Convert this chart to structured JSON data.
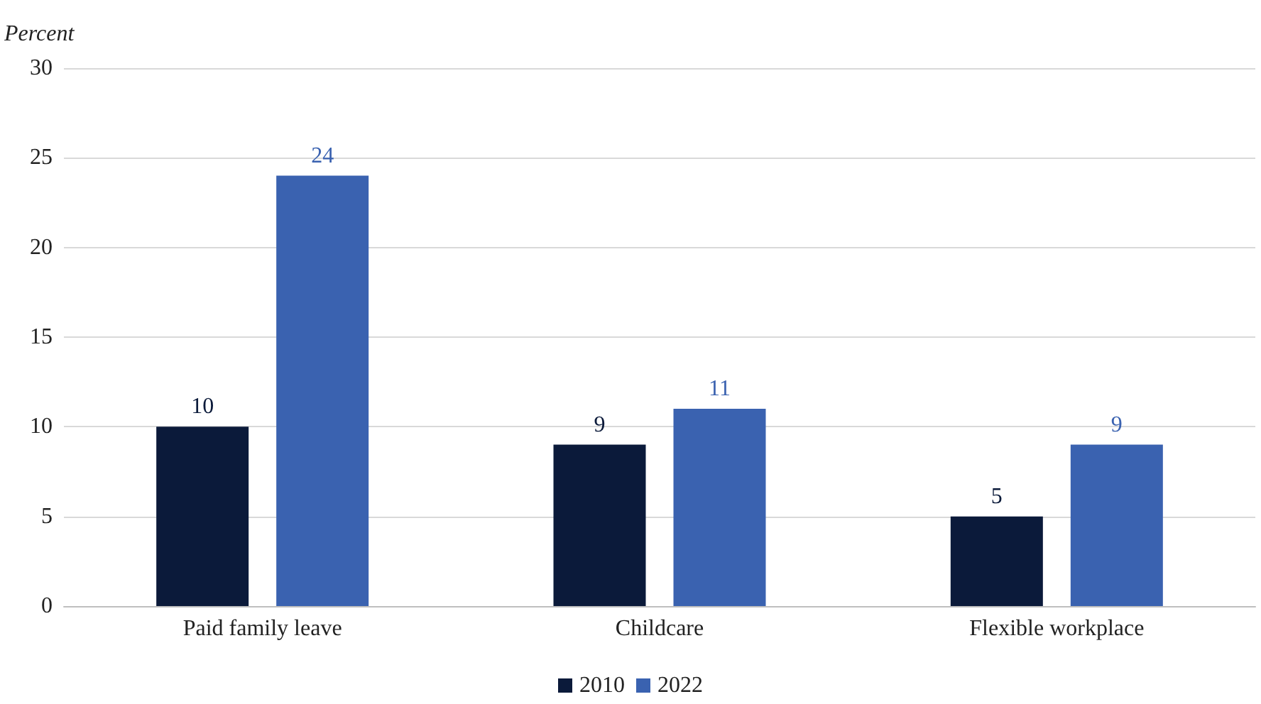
{
  "chart_data": {
    "type": "bar",
    "ylabel": "Percent",
    "categories": [
      "Paid family leave",
      "Childcare",
      "Flexible workplace"
    ],
    "series": [
      {
        "name": "2010",
        "color": "#0b1a3a",
        "values": [
          10,
          9,
          5
        ]
      },
      {
        "name": "2022",
        "color": "#3a62b0",
        "values": [
          24,
          11,
          9
        ]
      }
    ],
    "ylim": [
      0,
      30
    ],
    "yticks": [
      0,
      5,
      10,
      15,
      20,
      25,
      30
    ],
    "grid": "y",
    "legend": "bottom",
    "data_labels": true
  }
}
